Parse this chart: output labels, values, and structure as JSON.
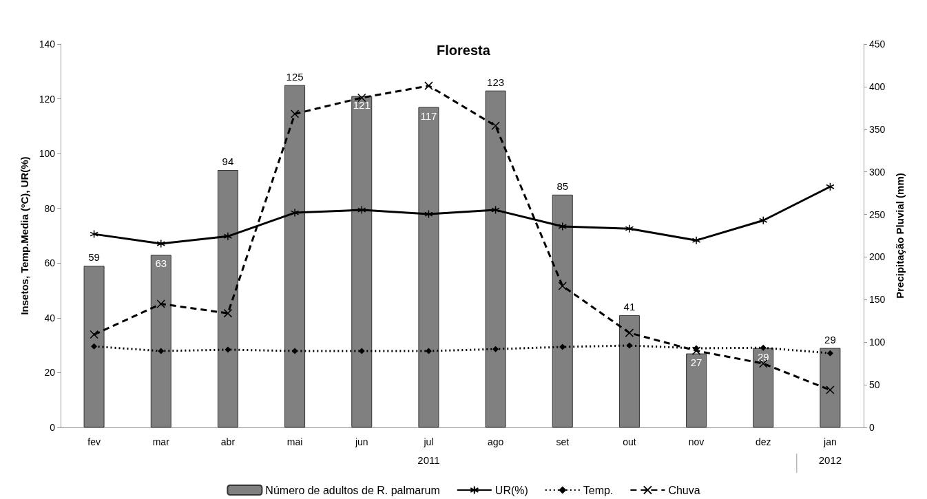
{
  "chart_data": {
    "type": "bar",
    "title": "Floresta",
    "ylabel": "Insetos, Temp.Media (ºC), UR(%)",
    "y2label": "Precipitação Pluvial (mm)",
    "categories": [
      "fev",
      "mar",
      "abr",
      "mai",
      "jun",
      "jul",
      "ago",
      "set",
      "out",
      "nov",
      "dez",
      "jan"
    ],
    "series": [
      {
        "name": "Número de adultos de R. palmarum",
        "type": "bar",
        "color": "#808080",
        "data_labels": true,
        "values": [
          59,
          63,
          94,
          125,
          121,
          117,
          123,
          85,
          41,
          27,
          29,
          29
        ]
      },
      {
        "name": "UR(%)",
        "type": "line",
        "color": "#000000",
        "marker": "star",
        "line_style": "solid",
        "values": [
          70.6,
          67.1,
          69.8,
          78.4,
          79.4,
          77.9,
          79.4,
          73.4,
          72.6,
          68.3,
          75.6,
          87.9
        ]
      },
      {
        "name": "Temp.",
        "type": "line",
        "color": "#000000",
        "marker": "diamond",
        "line_style": "dotted",
        "values": [
          29.6,
          27.9,
          28.4,
          27.9,
          27.9,
          27.9,
          28.6,
          29.4,
          29.9,
          28.9,
          29.1,
          27.1
        ]
      },
      {
        "name": "Chuva",
        "type": "line",
        "color": "#000000",
        "marker": "cross",
        "line_style": "dashed",
        "axis": "y2",
        "values": [
          109,
          145,
          134,
          368,
          387,
          401,
          354,
          166,
          111,
          90,
          75,
          44
        ]
      }
    ],
    "ylim": [
      0,
      140
    ],
    "yticks": [
      0,
      20,
      40,
      60,
      80,
      100,
      120,
      140
    ],
    "y2lim": [
      0,
      450
    ],
    "y2ticks": [
      0,
      50,
      100,
      150,
      200,
      250,
      300,
      350,
      400,
      450
    ],
    "annotations": [
      "2011",
      "2012"
    ],
    "grid": false,
    "legend": "bottom"
  }
}
